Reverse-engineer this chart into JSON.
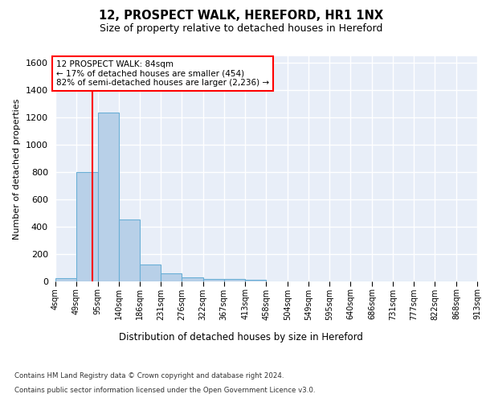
{
  "title": "12, PROSPECT WALK, HEREFORD, HR1 1NX",
  "subtitle": "Size of property relative to detached houses in Hereford",
  "xlabel": "Distribution of detached houses by size in Hereford",
  "ylabel": "Number of detached properties",
  "bin_edges": [
    4,
    49,
    95,
    140,
    186,
    231,
    276,
    322,
    367,
    413,
    458,
    504,
    549,
    595,
    640,
    686,
    731,
    777,
    822,
    868,
    913
  ],
  "bar_heights": [
    25,
    800,
    1240,
    455,
    125,
    58,
    28,
    18,
    18,
    12,
    0,
    0,
    0,
    0,
    0,
    0,
    0,
    0,
    0,
    0
  ],
  "bar_color": "#b8d0e8",
  "bar_edge_color": "#6aafd6",
  "property_line_x": 84,
  "property_line_color": "red",
  "annotation_text": "12 PROSPECT WALK: 84sqm\n← 17% of detached houses are smaller (454)\n82% of semi-detached houses are larger (2,236) →",
  "annotation_box_color": "white",
  "annotation_box_edge_color": "red",
  "ylim": [
    0,
    1650
  ],
  "yticks": [
    0,
    200,
    400,
    600,
    800,
    1000,
    1200,
    1400,
    1600
  ],
  "background_color": "#e8eef8",
  "grid_color": "white",
  "footer_line1": "Contains HM Land Registry data © Crown copyright and database right 2024.",
  "footer_line2": "Contains public sector information licensed under the Open Government Licence v3.0."
}
